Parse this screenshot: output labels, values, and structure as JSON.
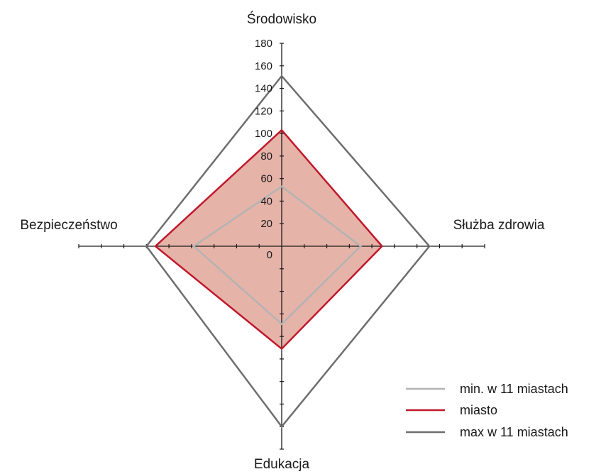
{
  "chart_data": {
    "type": "radar",
    "axes": [
      "Środowisko",
      "Służba zdrowia",
      "Edukacja",
      "Bezpieczeństwo"
    ],
    "range": [
      0,
      180
    ],
    "tick_step": 20,
    "tick_labels": [
      "0",
      "20",
      "40",
      "60",
      "80",
      "100",
      "120",
      "140",
      "160",
      "180"
    ],
    "series": [
      {
        "name": "min. w 11 miastach",
        "values": [
          53,
          70,
          69,
          78
        ],
        "color": "#b3b3b3",
        "fill": "none"
      },
      {
        "name": "miasto",
        "values": [
          103,
          89,
          91,
          112
        ],
        "color": "#c0182b",
        "fill": "#e6b3a8"
      },
      {
        "name": "max w 11 miastach",
        "values": [
          151,
          131,
          160,
          120
        ],
        "color": "#6e6e6e",
        "fill": "none"
      }
    ],
    "legend_position": "bottom-right"
  }
}
